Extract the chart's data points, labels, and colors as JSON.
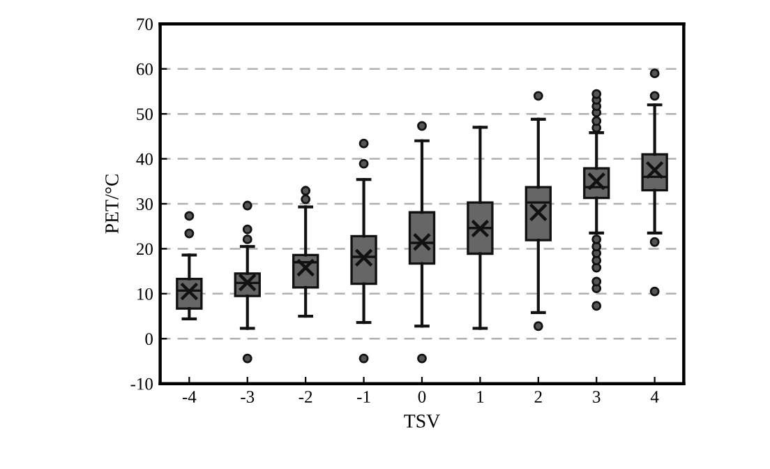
{
  "chart_data": {
    "type": "box",
    "xlabel": "TSV",
    "ylabel": "PET/°C",
    "categories": [
      "-4",
      "-3",
      "-2",
      "-1",
      "0",
      "1",
      "2",
      "3",
      "4"
    ],
    "color": "#666666",
    "boxes": [
      {
        "low": 4.4,
        "q1": 6.7,
        "median": 10.7,
        "q3": 13.3,
        "high": 18.6,
        "mean": 10.5,
        "outliers": [
          23.4,
          27.3
        ]
      },
      {
        "low": 2.3,
        "q1": 9.5,
        "median": 12.4,
        "q3": 14.5,
        "high": 20.5,
        "mean": 12.5,
        "outliers": [
          -4.4,
          22.1,
          24.3,
          29.6
        ]
      },
      {
        "low": 5.0,
        "q1": 11.4,
        "median": 17,
        "q3": 18.6,
        "high": 29.3,
        "mean": 15.8,
        "outliers": [
          31,
          32.9
        ]
      },
      {
        "low": 3.6,
        "q1": 12.2,
        "median": 18.2,
        "q3": 22.8,
        "high": 35.4,
        "mean": 18,
        "outliers": [
          -4.4,
          38.9,
          43.4
        ]
      },
      {
        "low": 2.8,
        "q1": 16.7,
        "median": 21.3,
        "q3": 28.1,
        "high": 44,
        "mean": 21.5,
        "outliers": [
          -4.4,
          47.3
        ]
      },
      {
        "low": 2.3,
        "q1": 18.9,
        "median": 24.6,
        "q3": 30.3,
        "high": 47,
        "mean": 24.5
      },
      {
        "low": 5.8,
        "q1": 21.9,
        "median": 30.3,
        "q3": 33.7,
        "high": 48.8,
        "mean": 28.1,
        "outliers": [
          2.8,
          54
        ]
      },
      {
        "low": 23.5,
        "q1": 31.3,
        "median": 33.7,
        "q3": 37.9,
        "high": 45.8,
        "mean": 35,
        "outliers": [
          7.3,
          11.2,
          12.7,
          15.8,
          17.4,
          19,
          20.5,
          22.1,
          46.9,
          48.4,
          50.3,
          51.7,
          53.1,
          54.4
        ]
      },
      {
        "low": 23.5,
        "q1": 33,
        "median": 36,
        "q3": 41,
        "high": 52,
        "mean": 37.5,
        "outliers": [
          10.5,
          21.5,
          54,
          59
        ]
      }
    ],
    "ylim": [
      -10,
      70
    ],
    "yticks": [
      -10,
      0,
      10,
      20,
      30,
      40,
      50,
      60,
      70
    ],
    "grid": "y",
    "line_style": "dashed"
  }
}
